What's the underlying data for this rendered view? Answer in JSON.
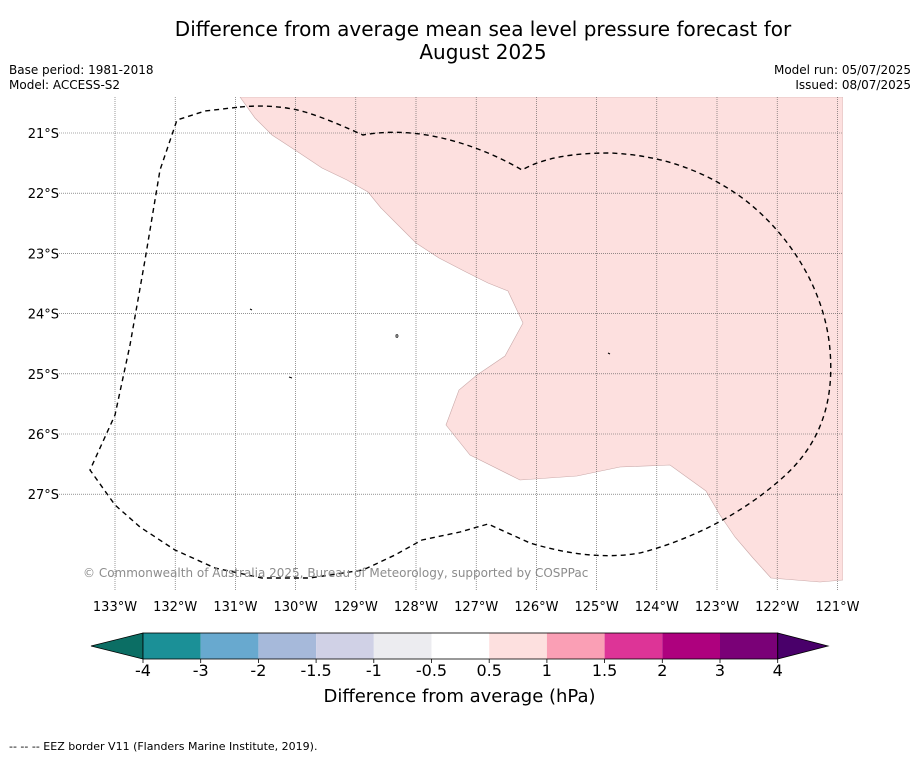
{
  "title_line1": "Difference from average mean sea level pressure forecast for",
  "title_line2": "August 2025",
  "meta_left": [
    "Base period: 1981-2018",
    "Model: ACCESS-S2"
  ],
  "meta_right": [
    "Model run: 05/07/2025",
    "Issued: 08/07/2025"
  ],
  "copyright": "© Commonwealth of Australia 2025, Bureau of Meteorology, supported by COSPPac",
  "lat_labels": [
    "21°S",
    "22°S",
    "23°S",
    "24°S",
    "25°S",
    "26°S",
    "27°S"
  ],
  "lon_labels": [
    "133°W",
    "132°W",
    "131°W",
    "130°W",
    "129°W",
    "128°W",
    "127°W",
    "126°W",
    "125°W",
    "124°W",
    "123°W",
    "122°W",
    "121°W"
  ],
  "colorbar": {
    "ticks": [
      "-4",
      "-3",
      "-2",
      "-1.5",
      "-1",
      "-0.5",
      "0.5",
      "1",
      "1.5",
      "2",
      "3",
      "4"
    ],
    "colors": [
      "#1b9097",
      "#68a9cf",
      "#a6b9da",
      "#d0d1e6",
      "#ececf0",
      "#ffffff",
      "#fde0df",
      "#fa9fb5",
      "#dd3497",
      "#ae017e",
      "#7a0177"
    ],
    "under_color": "#0b6e64",
    "over_color": "#49006a",
    "label": "Difference from average (hPa)"
  },
  "shaded_color": "#fde0df",
  "footer": "--  --  -- EEZ border V11 (Flanders Marine Institute, 2019)."
}
